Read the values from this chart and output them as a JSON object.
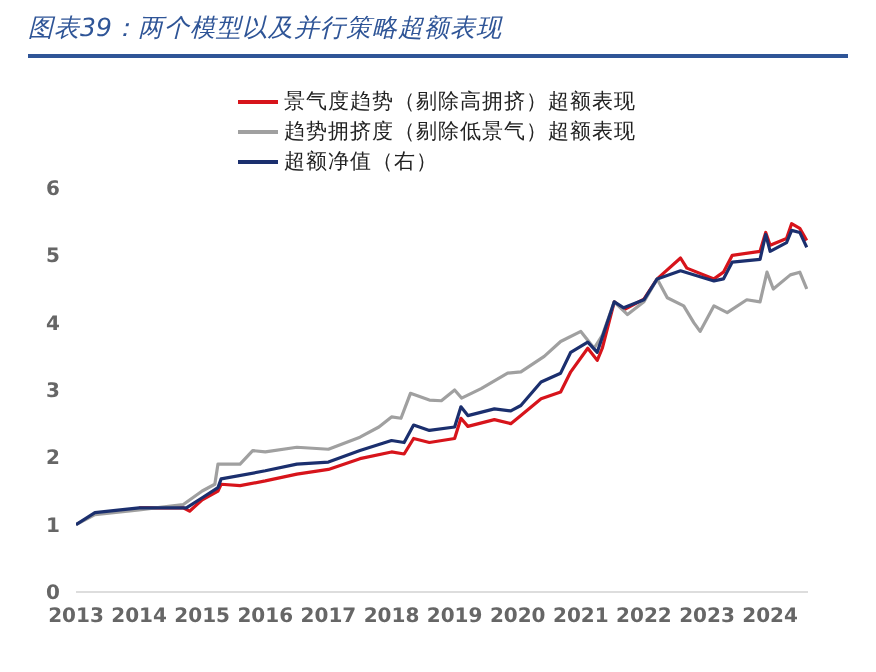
{
  "chart_data": {
    "type": "line",
    "title": "图表39：两个模型以及并行策略超额表现",
    "series": [
      {
        "name": "景气度趋势（剔除高拥挤）超额表现",
        "color": "#d7141b",
        "x": [
          2014,
          2014.7,
          2014.8,
          2015,
          2015.25,
          2015.3,
          2015.6,
          2016,
          2016.5,
          2017,
          2017.5,
          2018,
          2018.2,
          2018.35,
          2018.6,
          2019,
          2019.1,
          2019.21,
          2019.63,
          2019.89,
          2020.05,
          2020.37,
          2020.68,
          2020.84,
          2021.11,
          2021.26,
          2021.34,
          2021.53,
          2021.68,
          2022.0,
          2022.21,
          2022.58,
          2022.68,
          2023.11,
          2023.26,
          2023.4,
          2023.84,
          2023.93,
          2024.0,
          2024.26,
          2024.34,
          2024.47,
          2024.58
        ],
        "values": [
          1.25,
          1.25,
          1.2,
          1.37,
          1.5,
          1.6,
          1.58,
          1.65,
          1.75,
          1.82,
          1.98,
          2.08,
          2.05,
          2.28,
          2.22,
          2.28,
          2.58,
          2.46,
          2.56,
          2.5,
          2.62,
          2.87,
          2.97,
          3.27,
          3.62,
          3.44,
          3.62,
          4.31,
          4.19,
          4.35,
          4.65,
          4.96,
          4.81,
          4.65,
          4.75,
          5.0,
          5.06,
          5.34,
          5.15,
          5.25,
          5.47,
          5.4,
          5.22
        ]
      },
      {
        "name": "趋势拥挤度（剔除低景气）超额表现",
        "color": "#a0a0a0",
        "x": [
          2013,
          2013.3,
          2014,
          2014.7,
          2015,
          2015.2,
          2015.25,
          2015.6,
          2015.8,
          2016,
          2016.5,
          2017,
          2017.5,
          2017.8,
          2018,
          2018.15,
          2018.3,
          2018.6,
          2018.79,
          2019.0,
          2019.11,
          2019.42,
          2019.84,
          2020.05,
          2020.42,
          2020.68,
          2021.0,
          2021.21,
          2021.34,
          2021.53,
          2021.74,
          2022.0,
          2022.21,
          2022.37,
          2022.63,
          2022.79,
          2022.89,
          2023.11,
          2023.32,
          2023.63,
          2023.84,
          2023.95,
          2024.05,
          2024.32,
          2024.47,
          2024.58
        ],
        "values": [
          1.0,
          1.15,
          1.22,
          1.3,
          1.5,
          1.6,
          1.9,
          1.9,
          2.1,
          2.08,
          2.15,
          2.12,
          2.3,
          2.45,
          2.6,
          2.58,
          2.95,
          2.85,
          2.84,
          3.0,
          2.88,
          3.02,
          3.25,
          3.27,
          3.5,
          3.72,
          3.87,
          3.62,
          3.81,
          4.31,
          4.12,
          4.31,
          4.65,
          4.37,
          4.25,
          4.0,
          3.87,
          4.25,
          4.15,
          4.34,
          4.31,
          4.75,
          4.5,
          4.71,
          4.75,
          4.5
        ]
      },
      {
        "name": "超额净值（右）",
        "color": "#1b2f6e",
        "x": [
          2013,
          2013.3,
          2014,
          2014.75,
          2015,
          2015.25,
          2015.3,
          2016,
          2016.5,
          2017,
          2017.5,
          2018,
          2018.2,
          2018.35,
          2018.6,
          2019,
          2019.1,
          2019.21,
          2019.63,
          2019.89,
          2020.05,
          2020.37,
          2020.68,
          2020.84,
          2021.11,
          2021.26,
          2021.53,
          2021.68,
          2022.0,
          2022.21,
          2022.58,
          2023.11,
          2023.26,
          2023.4,
          2023.84,
          2023.93,
          2024.0,
          2024.26,
          2024.34,
          2024.47,
          2024.58
        ],
        "values": [
          1.0,
          1.18,
          1.25,
          1.25,
          1.4,
          1.55,
          1.68,
          1.8,
          1.9,
          1.93,
          2.1,
          2.25,
          2.22,
          2.48,
          2.4,
          2.45,
          2.75,
          2.62,
          2.72,
          2.69,
          2.77,
          3.12,
          3.25,
          3.56,
          3.71,
          3.56,
          4.31,
          4.22,
          4.34,
          4.65,
          4.77,
          4.62,
          4.65,
          4.9,
          4.94,
          5.31,
          5.06,
          5.19,
          5.37,
          5.34,
          5.12
        ]
      }
    ],
    "xlim": [
      2013,
      2024.6
    ],
    "xticks": [
      2013,
      2014,
      2015,
      2016,
      2017,
      2018,
      2019,
      2020,
      2021,
      2022,
      2023,
      2024
    ],
    "ylim": [
      0,
      6
    ],
    "yticks": [
      0,
      1,
      2,
      3,
      4,
      5,
      6
    ],
    "grid": false,
    "legend": "top",
    "marker": "none",
    "line_style": "solid"
  }
}
